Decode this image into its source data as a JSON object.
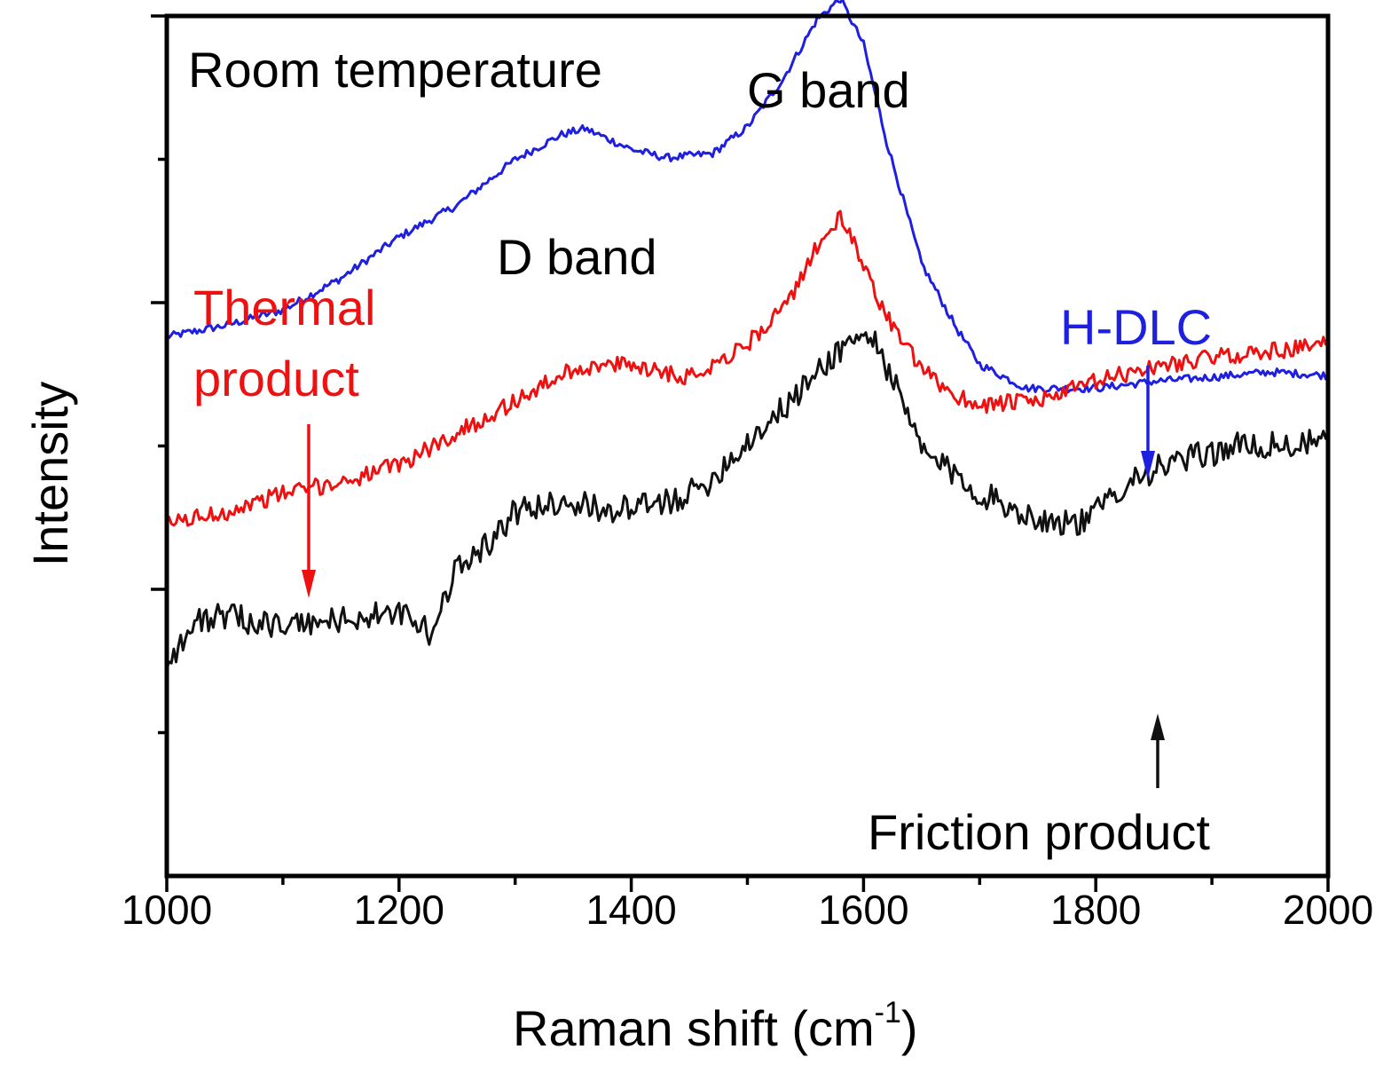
{
  "chart_data": {
    "type": "line",
    "xlabel": "Raman shift (cm",
    "xlabel_superscript": "-1",
    "xlabel_suffix": ")",
    "ylabel": "Intensity",
    "xlim": [
      1000,
      2000
    ],
    "ylim": [
      0,
      1
    ],
    "grid": false,
    "x_ticks": [
      "1000",
      "1200",
      "1400",
      "1600",
      "1800",
      "2000"
    ],
    "y_tick_labels_shown": false,
    "annotations": {
      "room_temperature": "Room temperature",
      "g_band": "G band",
      "d_band": "D band",
      "thermal_line1": "Thermal",
      "thermal_line2": "product",
      "hdlc": "H-DLC",
      "friction": "Friction product"
    },
    "series": [
      {
        "name": "H-DLC",
        "color": "#1f1fe0",
        "x": [
          1000,
          1050,
          1100,
          1150,
          1200,
          1250,
          1300,
          1340,
          1360,
          1400,
          1430,
          1470,
          1500,
          1530,
          1560,
          1580,
          1600,
          1620,
          1650,
          1680,
          1700,
          1740,
          1800,
          1850,
          1900,
          1950,
          2000
        ],
        "y": [
          0.627,
          0.64,
          0.658,
          0.695,
          0.743,
          0.78,
          0.833,
          0.862,
          0.869,
          0.845,
          0.835,
          0.84,
          0.871,
          0.925,
          0.996,
          1.02,
          0.967,
          0.853,
          0.712,
          0.637,
          0.595,
          0.567,
          0.567,
          0.575,
          0.58,
          0.586,
          0.582
        ]
      },
      {
        "name": "Thermal product",
        "color": "#ee1111",
        "x": [
          1000,
          1050,
          1100,
          1150,
          1200,
          1250,
          1300,
          1350,
          1400,
          1450,
          1500,
          1540,
          1560,
          1580,
          1600,
          1620,
          1650,
          1680,
          1700,
          1750,
          1800,
          1850,
          1900,
          1950,
          2000
        ],
        "y": [
          0.41,
          0.423,
          0.445,
          0.458,
          0.478,
          0.515,
          0.552,
          0.59,
          0.595,
          0.58,
          0.618,
          0.675,
          0.734,
          0.765,
          0.712,
          0.65,
          0.588,
          0.558,
          0.548,
          0.552,
          0.575,
          0.592,
          0.603,
          0.61,
          0.618
        ]
      },
      {
        "name": "Friction product",
        "color": "#111111",
        "x": [
          1000,
          1030,
          1060,
          1100,
          1150,
          1200,
          1230,
          1250,
          1280,
          1300,
          1340,
          1380,
          1420,
          1460,
          1500,
          1540,
          1570,
          1590,
          1610,
          1630,
          1650,
          1700,
          1750,
          1790,
          1830,
          1870,
          1920,
          1960,
          2000
        ],
        "y": [
          0.25,
          0.3,
          0.3,
          0.29,
          0.298,
          0.305,
          0.28,
          0.363,
          0.39,
          0.423,
          0.436,
          0.425,
          0.43,
          0.45,
          0.505,
          0.555,
          0.6,
          0.625,
          0.624,
          0.56,
          0.495,
          0.445,
          0.415,
          0.41,
          0.463,
          0.481,
          0.5,
          0.5,
          0.505
        ]
      }
    ]
  }
}
